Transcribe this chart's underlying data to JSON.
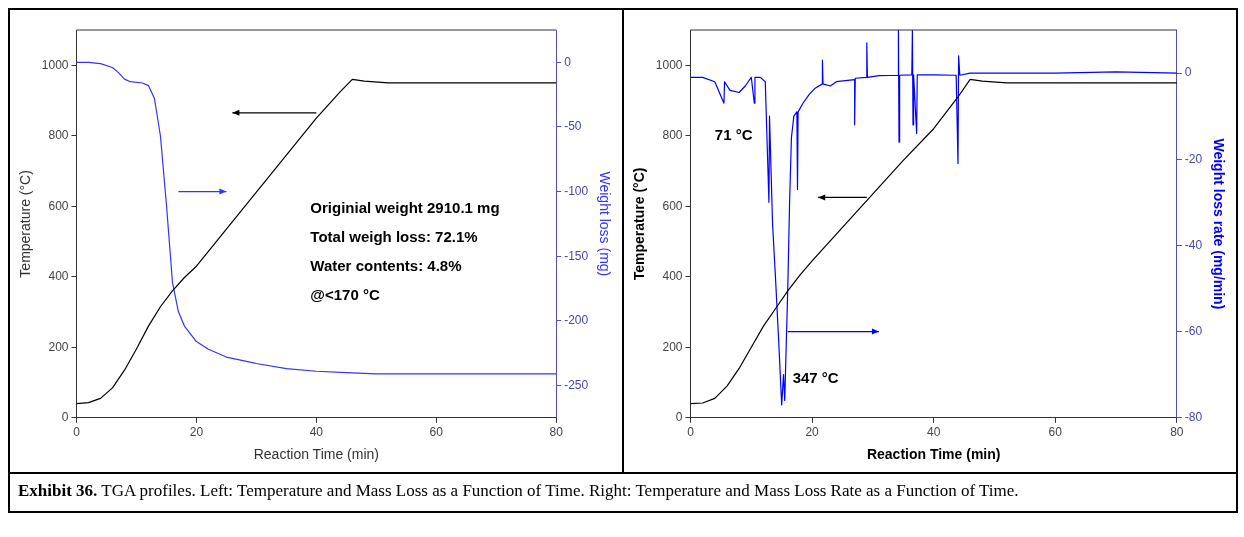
{
  "chart_data": [
    {
      "type": "line",
      "xlabel": "Reaction Time (min)",
      "ylabel": "Temperature (°C)",
      "y2label": "Weight loss (mg)",
      "xlim": [
        0,
        80
      ],
      "xticks": [
        0,
        20,
        40,
        60,
        80
      ],
      "ylim": [
        0,
        1100
      ],
      "yticks": [
        0,
        200,
        400,
        600,
        800,
        1000
      ],
      "y2lim": [
        -275,
        25
      ],
      "y2ticks": [
        -250,
        -200,
        -150,
        -100,
        -50,
        0
      ],
      "grid": false,
      "legend": false,
      "marker": "none",
      "line_style": "solid",
      "annotations": [
        "Originial weight 2910.1 mg",
        "Total weigh loss: 72.1%",
        "Water contents: 4.8%",
        "@<170 °C"
      ],
      "series": [
        {
          "color": "#000000",
          "x": [
            0,
            2,
            4,
            6,
            8,
            10,
            12,
            14,
            16,
            18,
            20,
            25,
            30,
            35,
            40,
            44,
            46,
            48,
            52,
            80
          ],
          "values": [
            40,
            43,
            55,
            85,
            135,
            195,
            260,
            315,
            360,
            398,
            430,
            535,
            640,
            745,
            850,
            925,
            960,
            955,
            950,
            950
          ]
        },
        {
          "color": "#3333ff",
          "axis": "y2",
          "x": [
            0,
            2,
            4,
            6,
            7,
            8,
            9,
            11,
            12,
            13,
            14,
            15,
            16,
            17,
            18,
            20,
            22,
            25,
            30,
            35,
            40,
            45,
            50,
            80
          ],
          "values": [
            0,
            0,
            -1,
            -4,
            -8,
            -13,
            -15,
            -16,
            -18,
            -28,
            -57,
            -110,
            -170,
            -193,
            -204,
            -216,
            -222,
            -228,
            -233,
            -237,
            -239,
            -240,
            -241,
            -241
          ]
        }
      ]
    },
    {
      "type": "line",
      "xlabel": "Reaction Time (min)",
      "ylabel": "Temperature (°C)",
      "y2label": "Weight loss rate (mg/min)",
      "xlim": [
        0,
        80
      ],
      "xticks": [
        0,
        20,
        40,
        60,
        80
      ],
      "ylim": [
        0,
        1100
      ],
      "yticks": [
        0,
        200,
        400,
        600,
        800,
        1000
      ],
      "y2lim": [
        -80,
        10
      ],
      "y2ticks": [
        -80,
        -60,
        -40,
        -20,
        0
      ],
      "grid": false,
      "legend": false,
      "marker": "none",
      "line_style": "solid",
      "annotations": [
        "71 °C",
        "347 °C",
        "Exhibit 36.",
        "TGA profiles. Left: Temperature and Mass Loss as a Function of Time. Right: Temperature and Mass Loss Rate as a Function of Time."
      ],
      "series": [
        {
          "color": "#000000",
          "x": [
            0,
            2,
            4,
            6,
            8,
            10,
            12,
            14,
            16,
            18,
            20,
            25,
            30,
            35,
            40,
            44,
            46,
            48,
            52,
            80
          ],
          "values": [
            40,
            42,
            55,
            90,
            140,
            200,
            260,
            310,
            360,
            405,
            445,
            540,
            635,
            730,
            820,
            910,
            960,
            955,
            950,
            950
          ]
        },
        {
          "color": "#0000ff",
          "axis": "y2",
          "x": [
            0,
            2,
            4,
            5.5,
            5.6,
            6.5,
            8,
            9,
            10,
            10.5,
            10.6,
            11.5,
            12.3,
            12.9,
            13,
            13.5,
            14,
            14.5,
            15,
            15.3,
            15.5,
            16,
            16.3,
            16.6,
            17,
            17.5,
            17.6,
            17.7,
            18.5,
            19.5,
            20.5,
            21.7,
            21.7,
            21.8,
            23,
            24,
            27,
            27,
            27.1,
            29,
            29,
            29.1,
            31,
            34.2,
            34.2,
            34.3,
            34.4,
            36.4,
            36.5,
            36.6,
            36.7,
            37.2,
            37.3,
            40,
            43.7,
            44,
            44.1,
            44.3,
            46,
            60,
            70,
            80
          ],
          "values": [
            -1,
            -1,
            -2,
            -7,
            -2,
            -4,
            -4.5,
            -3,
            -1,
            -7,
            -1,
            -1,
            -2,
            -30,
            -10,
            -35,
            -48,
            -62,
            -77,
            -70,
            -76,
            -50,
            -30,
            -15,
            -10,
            -9,
            -27,
            -9,
            -7,
            -5,
            -3.5,
            -2.5,
            3,
            -2.5,
            -3,
            -2,
            -1.5,
            -12,
            -1.2,
            -1,
            7,
            -1,
            -0.6,
            -0.5,
            10,
            -16,
            -0.5,
            -0.4,
            10,
            -12,
            -0.4,
            -14,
            -0.4,
            -0.4,
            -0.5,
            -21,
            4,
            -0.5,
            0,
            0,
            0.3,
            0
          ]
        }
      ]
    }
  ]
}
